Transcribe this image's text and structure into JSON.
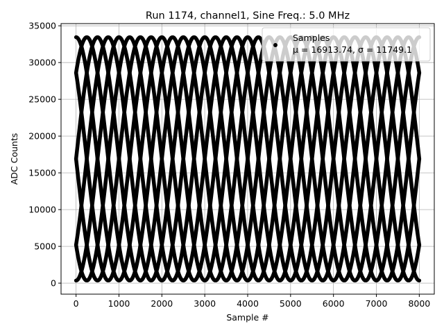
{
  "chart_data": {
    "type": "scatter",
    "title": "Run 1174, channel1, Sine Freq.: 5.0 MHz",
    "xlabel": "Sample #",
    "ylabel": "ADC Counts",
    "xlim": [
      -350,
      8350
    ],
    "ylim": [
      -1500,
      35300
    ],
    "xticks": [
      0,
      1000,
      2000,
      3000,
      4000,
      5000,
      6000,
      7000,
      8000
    ],
    "yticks": [
      0,
      5000,
      10000,
      15000,
      20000,
      25000,
      30000,
      35000
    ],
    "grid": true,
    "legend": {
      "placement": "upper-right",
      "label": "Samples",
      "stats": "μ = 16913.74, σ = 11749.1"
    },
    "series": [
      {
        "name": "Samples",
        "marker_color": "#000000",
        "model": {
          "form": "sine",
          "amplitude": 16550,
          "offset": 16900,
          "period_samples": 2000,
          "phases_deg": [
            0,
            45,
            90,
            135,
            180,
            225,
            270,
            315
          ]
        }
      }
    ]
  }
}
